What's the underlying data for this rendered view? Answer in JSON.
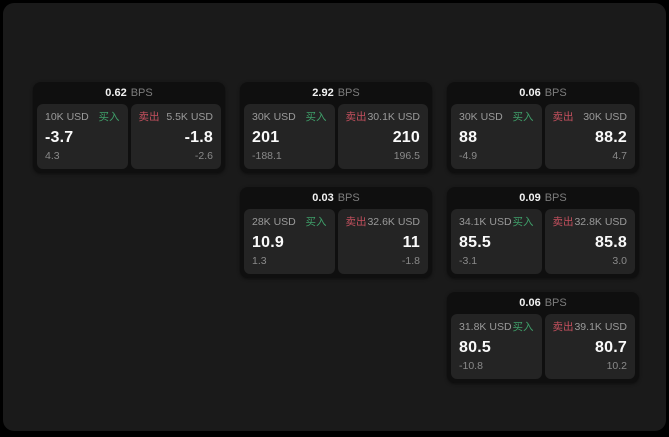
{
  "colors": {
    "page_background": "#000000",
    "panel_background": "#1a1a1a",
    "card_background": "#0f0f0f",
    "pane_background": "#242424",
    "buy_green": "#3fa06a",
    "sell_red": "#c4505e",
    "value_white": "#fafafa",
    "muted_gray": "#8f8f8f"
  },
  "cards": [
    {
      "bps": "0.62",
      "unit": "BPS",
      "buy": {
        "size": "10K USD",
        "label": "买入",
        "value": "-3.7",
        "delta": "4.3"
      },
      "sell": {
        "label": "卖出",
        "size": "5.5K USD",
        "value": "-1.8",
        "delta": "-2.6"
      }
    },
    {
      "bps": "2.92",
      "unit": "BPS",
      "buy": {
        "size": "30K USD",
        "label": "买入",
        "value": "201",
        "delta": "-188.1"
      },
      "sell": {
        "label": "卖出",
        "size": "30.1K USD",
        "value": "210",
        "delta": "196.5"
      }
    },
    {
      "bps": "0.06",
      "unit": "BPS",
      "buy": {
        "size": "30K USD",
        "label": "买入",
        "value": "88",
        "delta": "-4.9"
      },
      "sell": {
        "label": "卖出",
        "size": "30K USD",
        "value": "88.2",
        "delta": "4.7"
      }
    },
    {
      "bps": "0.03",
      "unit": "BPS",
      "buy": {
        "size": "28K USD",
        "label": "买入",
        "value": "10.9",
        "delta": "1.3"
      },
      "sell": {
        "label": "卖出",
        "size": "32.6K USD",
        "value": "11",
        "delta": "-1.8"
      }
    },
    {
      "bps": "0.09",
      "unit": "BPS",
      "buy": {
        "size": "34.1K USD",
        "label": "买入",
        "value": "85.5",
        "delta": "-3.1"
      },
      "sell": {
        "label": "卖出",
        "size": "32.8K USD",
        "value": "85.8",
        "delta": "3.0"
      }
    },
    {
      "bps": "0.06",
      "unit": "BPS",
      "buy": {
        "size": "31.8K USD",
        "label": "买入",
        "value": "80.5",
        "delta": "-10.8"
      },
      "sell": {
        "label": "卖出",
        "size": "39.1K USD",
        "value": "80.7",
        "delta": "10.2"
      }
    }
  ]
}
